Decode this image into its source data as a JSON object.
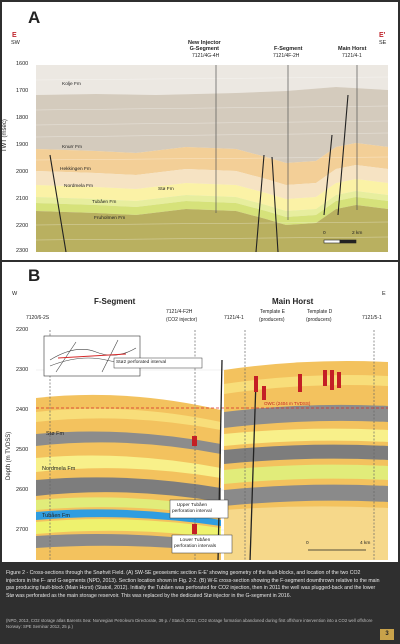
{
  "panel_a": {
    "label": "A",
    "endpoint_left": {
      "letter": "E",
      "direction": "SW"
    },
    "endpoint_right": {
      "letter": "E'",
      "direction": "SE"
    },
    "wells": [
      {
        "name": "New Injector\nG-Segment",
        "id": "7121/4G-4H"
      },
      {
        "name": "F-Segment",
        "id": "7121/4F-2H"
      },
      {
        "name": "Main Horst",
        "id": "7121/4-1"
      }
    ],
    "y_axis_title": "TWT (msec)",
    "y_ticks": [
      "1600",
      "1700",
      "1800",
      "1900",
      "2000",
      "2100",
      "2200",
      "2300"
    ],
    "formations": [
      "Kolje Fm",
      "Knurr Fm",
      "Hekkingen Fm",
      "Nordmela Fm",
      "Stø Fm",
      "Tubåen Fm",
      "Fruholmen Fm"
    ],
    "scale": {
      "start": "0",
      "end": "2 km"
    }
  },
  "panel_b": {
    "label": "B",
    "endpoint_left": "W",
    "endpoint_right": "E",
    "segment_left": "F-Segment",
    "segment_right": "Main Horst",
    "wells": [
      {
        "id": "7120/6-2S"
      },
      {
        "id": "7121/4-F2H",
        "role": "(CO2 injector)"
      },
      {
        "id": "7121/4-1"
      },
      {
        "id": "Template E",
        "role": "(producers)"
      },
      {
        "id": "Template D",
        "role": "(producers)"
      },
      {
        "id": "7121/5-1"
      }
    ],
    "y_axis_title": "Depth (m TVDSS)",
    "y_ticks": [
      "2200",
      "2300",
      "2400",
      "2500",
      "2600",
      "2700"
    ],
    "formations": [
      "Stø Fm",
      "Nordmela Fm",
      "Tubåen Fm"
    ],
    "contact_label": "OWC (2404 m TVDSS)",
    "callouts": [
      "Stø2 perforated interval",
      "Upper Tubåen\nperforation interval",
      "Lower Tubåen\nperforation intervals"
    ],
    "scale": {
      "start": "0",
      "end": "4 km"
    }
  },
  "caption": {
    "main": "Figure 2 - Cross-sections through the Snøhvit Field. (A) SW-SE geoseismic section E-E' showing geometry of the fault-blocks, and location of the two CO2 injectors in the F- and G-segments (NPD, 2013). Section location shown in Fig. 2-2. (B) W-E cross-section showing the F-segment downthrown relative to the main gas producing fault-block (Main Horst) (Statoil, 2012). Initially the Tubåen was perforated for CO2 injection, then in 2011 the well was plugged-back and the lower Stø was perforated as the main storage reservoir. This was replaced by the dedicated Stø injector in the G-segment in 2016.",
    "refs": "(NPD, 2013, CO2 storage atlas Barents Sea: Norwegian Petroleum Directorate, 39 p. / Statoil, 2012, CO2 storage formation abandoned during first offshore intervention into a CO2 well offshore Norway: SPE Seminar 2012, 25 p.)",
    "page": "3"
  }
}
